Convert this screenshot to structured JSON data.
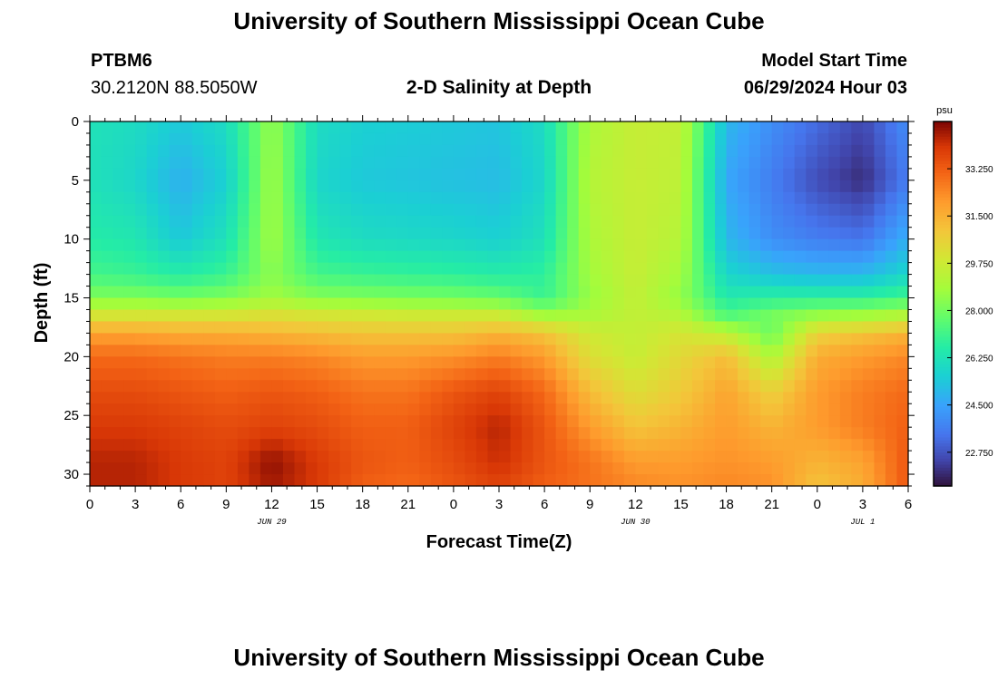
{
  "page": {
    "title_top": "University of Southern Mississippi Ocean Cube",
    "title_bottom": "University of Southern Mississippi Ocean Cube",
    "station_id": "PTBM6",
    "station_coords": "30.2120N  88.5050W",
    "plot_title": "2-D Salinity at Depth",
    "model_start_label": "Model Start Time",
    "model_start_value": "06/29/2024 Hour 03"
  },
  "chart_data": {
    "type": "heatmap",
    "title": "2-D Salinity at Depth",
    "xlabel": "Forecast Time(Z)",
    "ylabel": "Depth (ft)",
    "x_tick_labels": [
      "0",
      "3",
      "6",
      "9",
      "12",
      "15",
      "18",
      "21",
      "0",
      "3",
      "6",
      "9",
      "12",
      "15",
      "18",
      "21",
      "0",
      "3",
      "6"
    ],
    "x_range_hours": [
      0,
      54
    ],
    "date_labels": [
      {
        "text": "JUN 29",
        "hour": 12
      },
      {
        "text": "JUN 30",
        "hour": 36
      },
      {
        "text": "JUL 1",
        "hour": 51
      }
    ],
    "y_ticks": [
      0,
      5,
      10,
      15,
      20,
      25,
      30
    ],
    "y_range": [
      0,
      31
    ],
    "y_inverted": true,
    "colorbar": {
      "unit": "psu",
      "ticks": [
        33.25,
        31.5,
        29.75,
        28.0,
        26.25,
        24.5,
        22.75
      ],
      "tick_labels": [
        "33.250",
        "31.500",
        "29.750",
        "28.000",
        "26.250",
        "24.500",
        "22.750"
      ],
      "range": [
        21.5,
        35.0
      ],
      "colormap": "turbo"
    },
    "grid_hours": [
      0,
      3,
      6,
      9,
      12,
      15,
      18,
      21,
      24,
      27,
      30,
      33,
      36,
      39,
      42,
      45,
      48,
      51,
      54
    ],
    "grid_depths": [
      0,
      5,
      10,
      13,
      15,
      16.5,
      18,
      20,
      23,
      26,
      29,
      31
    ],
    "salinity": [
      [
        26.2,
        26.0,
        25.4,
        26.0,
        28.6,
        26.0,
        25.6,
        25.5,
        25.4,
        25.3,
        26.0,
        29.0,
        29.6,
        29.5,
        25.0,
        24.0,
        23.2,
        22.5,
        24.0
      ],
      [
        26.2,
        25.8,
        24.8,
        25.6,
        28.8,
        25.8,
        25.4,
        25.3,
        25.2,
        25.1,
        25.8,
        29.2,
        29.6,
        29.4,
        24.6,
        23.6,
        22.6,
        22.0,
        23.6
      ],
      [
        26.6,
        26.4,
        25.4,
        26.2,
        28.8,
        26.4,
        26.0,
        25.9,
        25.8,
        25.6,
        26.2,
        29.0,
        29.6,
        29.2,
        25.0,
        24.0,
        23.6,
        23.4,
        24.8
      ],
      [
        27.2,
        27.0,
        26.6,
        27.0,
        28.4,
        27.2,
        27.0,
        26.9,
        26.8,
        26.6,
        26.8,
        28.8,
        29.6,
        28.8,
        25.8,
        25.2,
        25.0,
        25.0,
        25.8
      ],
      [
        28.2,
        28.2,
        28.0,
        28.2,
        28.8,
        28.3,
        28.2,
        28.1,
        28.0,
        27.8,
        27.0,
        28.6,
        29.5,
        28.5,
        26.5,
        26.8,
        26.8,
        26.8,
        27.2
      ],
      [
        30.0,
        30.0,
        30.0,
        30.0,
        30.2,
        30.0,
        29.9,
        29.8,
        29.8,
        29.8,
        28.8,
        29.0,
        29.5,
        29.2,
        27.4,
        28.0,
        28.6,
        28.8,
        29.2
      ],
      [
        31.8,
        31.8,
        31.6,
        31.6,
        31.4,
        31.2,
        31.0,
        31.0,
        31.0,
        31.4,
        31.0,
        29.8,
        29.5,
        30.0,
        29.4,
        27.8,
        30.6,
        31.0,
        31.4
      ],
      [
        33.0,
        33.0,
        32.8,
        32.6,
        32.6,
        32.4,
        32.0,
        32.0,
        32.2,
        32.6,
        32.0,
        30.2,
        29.6,
        30.4,
        31.2,
        29.0,
        31.6,
        32.0,
        32.4
      ],
      [
        33.6,
        33.6,
        33.4,
        33.2,
        33.4,
        33.2,
        32.8,
        32.8,
        33.4,
        33.8,
        33.0,
        31.2,
        30.2,
        30.8,
        31.8,
        30.6,
        32.0,
        32.6,
        33.0
      ],
      [
        34.0,
        34.0,
        33.8,
        33.6,
        33.8,
        33.6,
        33.2,
        33.2,
        33.8,
        34.4,
        33.4,
        32.0,
        31.0,
        31.4,
        32.0,
        31.4,
        32.0,
        32.6,
        33.2
      ],
      [
        34.4,
        34.4,
        34.0,
        33.8,
        34.8,
        34.0,
        33.4,
        33.2,
        33.6,
        34.2,
        33.4,
        32.8,
        32.0,
        32.0,
        32.2,
        32.0,
        31.4,
        31.8,
        33.4
      ],
      [
        34.4,
        34.4,
        34.0,
        33.8,
        34.6,
        34.0,
        33.2,
        33.0,
        33.4,
        33.8,
        33.2,
        32.8,
        32.4,
        32.2,
        32.4,
        32.2,
        31.0,
        31.6,
        33.4
      ]
    ]
  },
  "colors": {
    "background": "#ffffff",
    "text": "#000000"
  }
}
